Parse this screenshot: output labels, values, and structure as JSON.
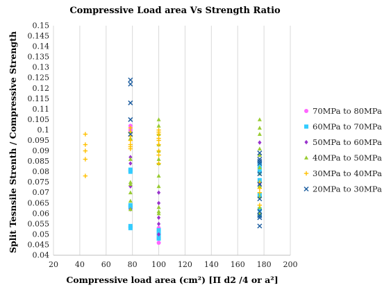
{
  "chart_data": {
    "type": "scatter",
    "title": "Compressive Load area Vs Strength Ratio",
    "xlabel": "Compressive load area (cm²) [Π d2 /4 or a²]",
    "ylabel": "Split Tesnsile Strenth / Compressive Strength",
    "xlim": [
      20,
      200
    ],
    "ylim": [
      0.04,
      0.15
    ],
    "x_ticks": [
      20,
      40,
      60,
      80,
      100,
      120,
      140,
      160,
      180,
      200
    ],
    "y_ticks": [
      0.04,
      0.045,
      0.05,
      0.055,
      0.06,
      0.065,
      0.07,
      0.075,
      0.08,
      0.085,
      0.09,
      0.095,
      0.1,
      0.105,
      0.11,
      0.115,
      0.12,
      0.125,
      0.13,
      0.135,
      0.14,
      0.145,
      0.15
    ],
    "x_tick_labels": [
      "20",
      "40",
      "60",
      "80",
      "100",
      "120",
      "140",
      "160",
      "180",
      "200"
    ],
    "y_tick_labels": [
      "0.04",
      "0.045",
      "0.05",
      "0.055",
      "0.06",
      "0.065",
      "0.07",
      "0.075",
      "0.08",
      "0.085",
      "0.09",
      "0.095",
      "0.1",
      "0.105",
      "0.11",
      "0.115",
      "0.12",
      "0.125",
      "0.13",
      "0.135",
      "0.14",
      "0.145",
      "0.15"
    ],
    "grid": "vertical",
    "legend_position": "right",
    "series": [
      {
        "name": "70MPa to 80MPa",
        "marker": "circle",
        "color": "#ff66ff",
        "points": [
          {
            "x": 78.5,
            "y": 0.102
          },
          {
            "x": 78.5,
            "y": 0.1
          },
          {
            "x": 78.5,
            "y": 0.081
          },
          {
            "x": 78.5,
            "y": 0.063
          },
          {
            "x": 100,
            "y": 0.046
          },
          {
            "x": 100,
            "y": 0.048
          },
          {
            "x": 100,
            "y": 0.05
          },
          {
            "x": 100,
            "y": 0.053
          },
          {
            "x": 176.7,
            "y": 0.082
          },
          {
            "x": 176.7,
            "y": 0.075
          }
        ]
      },
      {
        "name": "60MPa to 70MPa",
        "marker": "square",
        "color": "#33ccff",
        "points": [
          {
            "x": 78.5,
            "y": 0.054
          },
          {
            "x": 78.5,
            "y": 0.053
          },
          {
            "x": 78.5,
            "y": 0.063
          },
          {
            "x": 78.5,
            "y": 0.064
          },
          {
            "x": 78.5,
            "y": 0.08
          },
          {
            "x": 78.5,
            "y": 0.081
          },
          {
            "x": 100,
            "y": 0.048
          },
          {
            "x": 100,
            "y": 0.05
          },
          {
            "x": 100,
            "y": 0.052
          },
          {
            "x": 176.7,
            "y": 0.059
          },
          {
            "x": 176.7,
            "y": 0.062
          },
          {
            "x": 176.7,
            "y": 0.069
          },
          {
            "x": 176.7,
            "y": 0.076
          },
          {
            "x": 176.7,
            "y": 0.08
          },
          {
            "x": 176.7,
            "y": 0.082
          },
          {
            "x": 176.7,
            "y": 0.084
          }
        ]
      },
      {
        "name": "50MPa to 60MPa",
        "marker": "diamond",
        "color": "#9933cc",
        "points": [
          {
            "x": 78.5,
            "y": 0.087
          },
          {
            "x": 78.5,
            "y": 0.084
          },
          {
            "x": 78.5,
            "y": 0.073
          },
          {
            "x": 78.5,
            "y": 0.062
          },
          {
            "x": 100,
            "y": 0.07
          },
          {
            "x": 100,
            "y": 0.065
          },
          {
            "x": 100,
            "y": 0.058
          },
          {
            "x": 100,
            "y": 0.055
          },
          {
            "x": 100,
            "y": 0.05
          },
          {
            "x": 176.7,
            "y": 0.094
          },
          {
            "x": 176.7,
            "y": 0.088
          },
          {
            "x": 176.7,
            "y": 0.074
          }
        ]
      },
      {
        "name": "40MPa to 50MPa",
        "marker": "triangle",
        "color": "#99cc33",
        "points": [
          {
            "x": 78.5,
            "y": 0.099
          },
          {
            "x": 78.5,
            "y": 0.096
          },
          {
            "x": 78.5,
            "y": 0.086
          },
          {
            "x": 78.5,
            "y": 0.075
          },
          {
            "x": 78.5,
            "y": 0.074
          },
          {
            "x": 78.5,
            "y": 0.07
          },
          {
            "x": 78.5,
            "y": 0.066
          },
          {
            "x": 78.5,
            "y": 0.062
          },
          {
            "x": 100,
            "y": 0.105
          },
          {
            "x": 100,
            "y": 0.102
          },
          {
            "x": 100,
            "y": 0.098
          },
          {
            "x": 100,
            "y": 0.093
          },
          {
            "x": 100,
            "y": 0.09
          },
          {
            "x": 100,
            "y": 0.086
          },
          {
            "x": 100,
            "y": 0.084
          },
          {
            "x": 100,
            "y": 0.078
          },
          {
            "x": 100,
            "y": 0.073
          },
          {
            "x": 100,
            "y": 0.063
          },
          {
            "x": 100,
            "y": 0.061
          },
          {
            "x": 100,
            "y": 0.06
          },
          {
            "x": 176.7,
            "y": 0.105
          },
          {
            "x": 176.7,
            "y": 0.101
          },
          {
            "x": 176.7,
            "y": 0.098
          },
          {
            "x": 176.7,
            "y": 0.091
          },
          {
            "x": 176.7,
            "y": 0.088
          },
          {
            "x": 176.7,
            "y": 0.082
          },
          {
            "x": 176.7,
            "y": 0.079
          },
          {
            "x": 176.7,
            "y": 0.073
          },
          {
            "x": 176.7,
            "y": 0.068
          },
          {
            "x": 176.7,
            "y": 0.063
          },
          {
            "x": 176.7,
            "y": 0.06
          }
        ]
      },
      {
        "name": "30MPa to 40MPa",
        "marker": "plus",
        "color": "#ffc000",
        "points": [
          {
            "x": 44.2,
            "y": 0.098
          },
          {
            "x": 44.2,
            "y": 0.093
          },
          {
            "x": 44.2,
            "y": 0.09
          },
          {
            "x": 44.2,
            "y": 0.086
          },
          {
            "x": 44.2,
            "y": 0.078
          },
          {
            "x": 78.5,
            "y": 0.101
          },
          {
            "x": 78.5,
            "y": 0.099
          },
          {
            "x": 78.5,
            "y": 0.097
          },
          {
            "x": 78.5,
            "y": 0.095
          },
          {
            "x": 78.5,
            "y": 0.093
          },
          {
            "x": 78.5,
            "y": 0.092
          },
          {
            "x": 78.5,
            "y": 0.091
          },
          {
            "x": 100,
            "y": 0.1
          },
          {
            "x": 100,
            "y": 0.099
          },
          {
            "x": 100,
            "y": 0.098
          },
          {
            "x": 100,
            "y": 0.096
          },
          {
            "x": 100,
            "y": 0.095
          },
          {
            "x": 100,
            "y": 0.093
          },
          {
            "x": 100,
            "y": 0.09
          },
          {
            "x": 100,
            "y": 0.088
          },
          {
            "x": 100,
            "y": 0.084
          },
          {
            "x": 176.7,
            "y": 0.075
          },
          {
            "x": 176.7,
            "y": 0.072
          },
          {
            "x": 176.7,
            "y": 0.07
          },
          {
            "x": 176.7,
            "y": 0.064
          }
        ]
      },
      {
        "name": "20MPa to 30MPa",
        "marker": "x",
        "color": "#1f5fa0",
        "points": [
          {
            "x": 78.5,
            "y": 0.124
          },
          {
            "x": 78.5,
            "y": 0.122
          },
          {
            "x": 78.5,
            "y": 0.113
          },
          {
            "x": 78.5,
            "y": 0.105
          },
          {
            "x": 78.5,
            "y": 0.098
          },
          {
            "x": 176.7,
            "y": 0.089
          },
          {
            "x": 176.7,
            "y": 0.086
          },
          {
            "x": 176.7,
            "y": 0.085
          },
          {
            "x": 176.7,
            "y": 0.084
          },
          {
            "x": 176.7,
            "y": 0.079
          },
          {
            "x": 176.7,
            "y": 0.074
          },
          {
            "x": 176.7,
            "y": 0.067
          },
          {
            "x": 176.7,
            "y": 0.061
          },
          {
            "x": 176.7,
            "y": 0.059
          },
          {
            "x": 176.7,
            "y": 0.058
          },
          {
            "x": 176.7,
            "y": 0.054
          }
        ]
      }
    ]
  }
}
